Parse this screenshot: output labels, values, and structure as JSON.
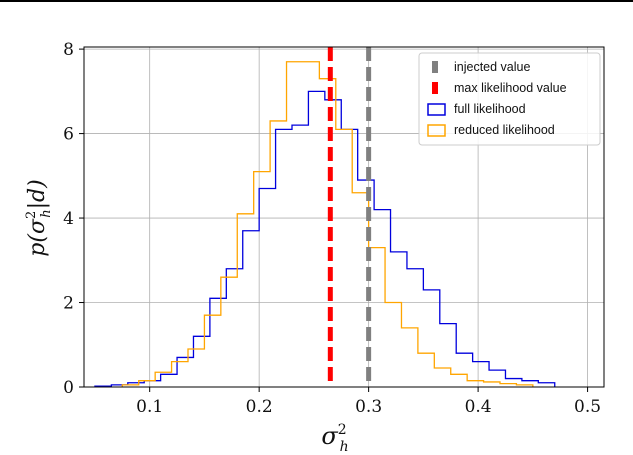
{
  "chart_data": {
    "type": "histogram",
    "xlabel": "σ_h^2",
    "ylabel": "p(σ_h^2|d)",
    "xlabel_main": "σ",
    "xlabel_sup": "2",
    "xlabel_sub": "h",
    "ylabel_pre": "p(σ",
    "ylabel_sup": "2",
    "ylabel_sub": "h",
    "ylabel_post": "|d)",
    "xlim": [
      0.04,
      0.515
    ],
    "ylim": [
      0,
      8.05
    ],
    "xticks": [
      0.1,
      0.2,
      0.3,
      0.4,
      0.5
    ],
    "xtick_labels": [
      "0.1",
      "0.2",
      "0.3",
      "0.4",
      "0.5"
    ],
    "yticks": [
      0,
      2,
      4,
      6,
      8
    ],
    "ytick_labels": [
      "0",
      "2",
      "4",
      "6",
      "8"
    ],
    "grid": true,
    "legend_position": "top-right",
    "vlines": [
      {
        "name": "injected value",
        "x": 0.3,
        "color": "#808080",
        "style": "dashed"
      },
      {
        "name": "max likelihood value",
        "x": 0.265,
        "color": "#ff0000",
        "style": "dashed"
      }
    ],
    "series": [
      {
        "name": "full likelihood",
        "color": "#0000dd",
        "edges": [
          0.05,
          0.065,
          0.08,
          0.095,
          0.11,
          0.125,
          0.14,
          0.155,
          0.17,
          0.185,
          0.2,
          0.215,
          0.23,
          0.245,
          0.26,
          0.275,
          0.29,
          0.305,
          0.32,
          0.335,
          0.35,
          0.365,
          0.38,
          0.395,
          0.41,
          0.425,
          0.44,
          0.455,
          0.47
        ],
        "values": [
          0.02,
          0.05,
          0.1,
          0.15,
          0.3,
          0.7,
          1.2,
          2.1,
          2.8,
          3.7,
          4.7,
          6.1,
          6.2,
          7.0,
          6.8,
          6.1,
          4.9,
          4.2,
          3.2,
          2.8,
          2.3,
          1.5,
          0.8,
          0.6,
          0.4,
          0.2,
          0.15,
          0.1
        ]
      },
      {
        "name": "reduced likelihood",
        "color": "#ffa500",
        "edges": [
          0.075,
          0.09,
          0.105,
          0.12,
          0.135,
          0.15,
          0.165,
          0.18,
          0.195,
          0.21,
          0.225,
          0.24,
          0.255,
          0.27,
          0.285,
          0.3,
          0.315,
          0.33,
          0.345,
          0.36,
          0.375,
          0.39,
          0.405,
          0.42,
          0.435,
          0.45
        ],
        "values": [
          0.05,
          0.15,
          0.35,
          0.6,
          0.9,
          1.7,
          2.6,
          4.1,
          5.1,
          6.3,
          7.7,
          7.7,
          7.3,
          6.1,
          4.6,
          3.3,
          2.0,
          1.4,
          0.8,
          0.45,
          0.3,
          0.15,
          0.12,
          0.08,
          0.05
        ]
      }
    ]
  }
}
